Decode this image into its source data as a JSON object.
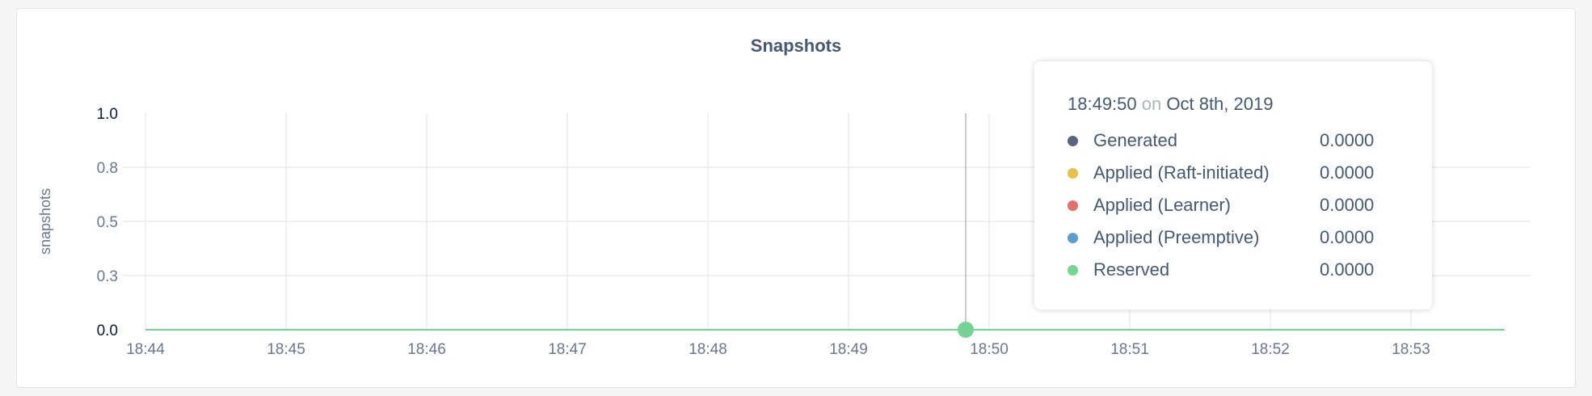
{
  "chart_data": {
    "type": "line",
    "title": "Snapshots",
    "ylabel": "snapshots",
    "xlabel": "",
    "ylim": [
      0,
      1
    ],
    "y_ticks": [
      0,
      0.25,
      0.5,
      0.75,
      1.0
    ],
    "y_tick_labels": [
      "0.0",
      "0.3",
      "0.5",
      "0.8",
      "1.0"
    ],
    "x_tick_labels": [
      "18:44",
      "18:45",
      "18:46",
      "18:47",
      "18:48",
      "18:49",
      "18:50",
      "18:51",
      "18:52",
      "18:53"
    ],
    "x": [
      "18:44:00",
      "18:45:00",
      "18:46:00",
      "18:47:00",
      "18:48:00",
      "18:49:00",
      "18:50:00",
      "18:51:00",
      "18:52:00",
      "18:53:00",
      "18:53:40"
    ],
    "grid": true,
    "series": [
      {
        "name": "Generated",
        "color": "#5a6480",
        "values": [
          0,
          0,
          0,
          0,
          0,
          0,
          0,
          0,
          0,
          0,
          0
        ]
      },
      {
        "name": "Applied (Raft-initiated)",
        "color": "#e9c04a",
        "values": [
          0,
          0,
          0,
          0,
          0,
          0,
          0,
          0,
          0,
          0,
          0
        ]
      },
      {
        "name": "Applied (Learner)",
        "color": "#e46f6a",
        "values": [
          0,
          0,
          0,
          0,
          0,
          0,
          0,
          0,
          0,
          0,
          0
        ]
      },
      {
        "name": "Applied (Preemptive)",
        "color": "#5a9ed0",
        "values": [
          0,
          0,
          0,
          0,
          0,
          0,
          0,
          0,
          0,
          0,
          0
        ]
      },
      {
        "name": "Reserved",
        "color": "#76d396",
        "values": [
          0,
          0,
          0,
          0,
          0,
          0,
          0,
          0,
          0,
          0,
          0
        ]
      }
    ],
    "hover": {
      "x": "18:49:50",
      "time": "18:49:50",
      "on": "on",
      "date": "Oct 8th, 2019",
      "values": [
        "0.0000",
        "0.0000",
        "0.0000",
        "0.0000",
        "0.0000"
      ]
    }
  }
}
